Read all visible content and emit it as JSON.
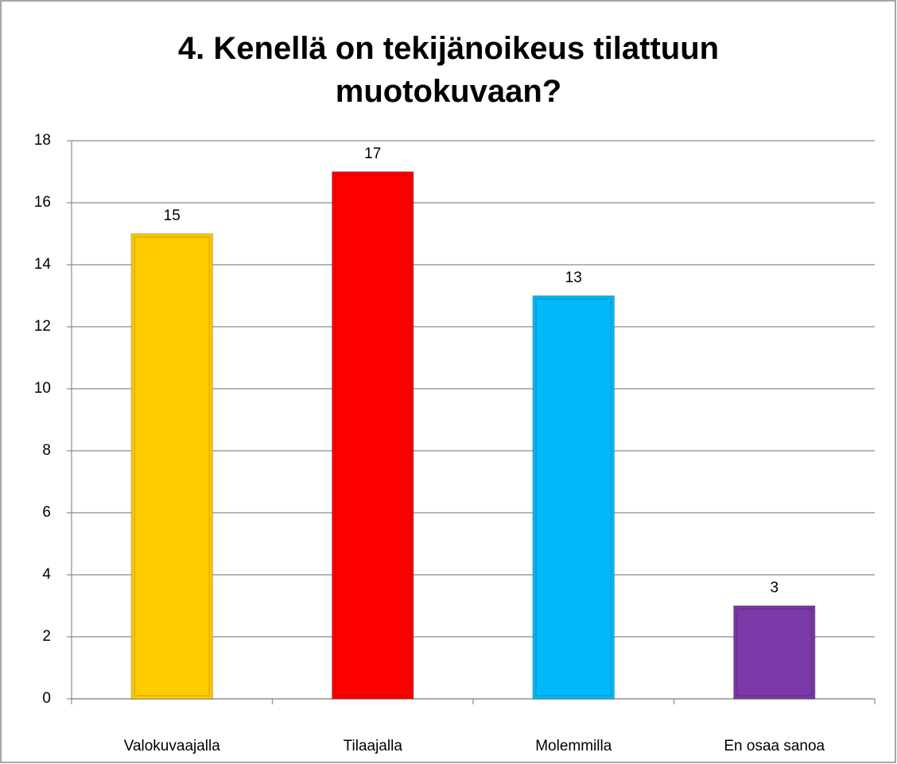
{
  "chart_data": {
    "type": "bar",
    "title": "4. Kenellä on tekijänoikeus tilattuun muotokuvaan?",
    "categories": [
      "Valokuvaajalla",
      "Tilaajalla",
      "Molemmilla",
      "En osaa sanoa"
    ],
    "values": [
      15,
      17,
      13,
      3
    ],
    "colors": [
      "#ffcc00",
      "#ff0000",
      "#00b9fb",
      "#7a38a8"
    ],
    "ylim": [
      0,
      18
    ],
    "yticks": [
      0,
      2,
      4,
      6,
      8,
      10,
      12,
      14,
      16,
      18
    ],
    "grid": true
  }
}
